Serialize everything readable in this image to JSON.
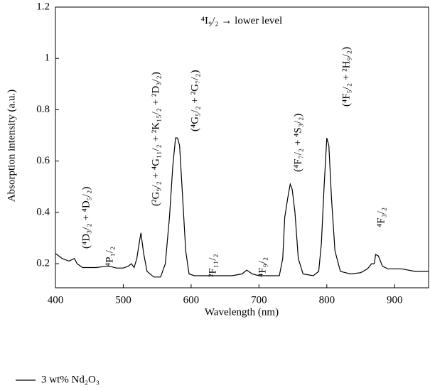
{
  "chart_data": {
    "type": "line",
    "x_label": "Wavelength (nm)",
    "y_label": "Absorption intensity (a.u.)",
    "x": [
      400,
      410,
      420,
      428,
      432,
      440,
      460,
      475,
      480,
      490,
      500,
      507,
      512,
      516,
      520,
      524,
      526,
      530,
      535,
      545,
      555,
      562,
      568,
      573,
      577,
      580,
      583,
      587,
      592,
      597,
      605,
      620,
      660,
      675,
      682,
      690,
      700,
      730,
      735,
      738,
      742,
      746,
      749,
      753,
      758,
      765,
      780,
      788,
      792,
      796,
      800,
      803,
      807,
      812,
      820,
      835,
      850,
      860,
      866,
      870,
      872,
      876,
      882,
      890,
      910,
      930,
      950
    ],
    "series": [
      {
        "name": "3 wt% Nd₂O₃",
        "color": "#000000",
        "values": [
          0.24,
          0.22,
          0.21,
          0.22,
          0.2,
          0.185,
          0.185,
          0.19,
          0.19,
          0.183,
          0.183,
          0.19,
          0.2,
          0.185,
          0.22,
          0.29,
          0.32,
          0.24,
          0.17,
          0.148,
          0.148,
          0.2,
          0.38,
          0.58,
          0.69,
          0.69,
          0.66,
          0.48,
          0.25,
          0.16,
          0.153,
          0.153,
          0.153,
          0.16,
          0.175,
          0.16,
          0.153,
          0.153,
          0.22,
          0.38,
          0.45,
          0.51,
          0.49,
          0.4,
          0.22,
          0.16,
          0.153,
          0.17,
          0.28,
          0.5,
          0.69,
          0.66,
          0.45,
          0.25,
          0.17,
          0.16,
          0.165,
          0.18,
          0.2,
          0.2,
          0.236,
          0.23,
          0.19,
          0.18,
          0.18,
          0.17,
          0.17
        ]
      }
    ],
    "xlim": [
      400,
      950
    ],
    "xticks": [
      400,
      500,
      600,
      700,
      800,
      900
    ],
    "ylim": [
      0.106,
      1.2
    ],
    "yticks": [
      0.2,
      0.4,
      0.6,
      0.8,
      {
        "value": 1,
        "label": "1"
      },
      1.2
    ],
    "annotations": [
      "(⁴D₃/₂ + ⁴D₅/₂)",
      "⁴P₁/₂",
      "(²G₉/₂ + ⁴G₁₁/₂ + ²K₁₅/₂ + ²D₃/₂)",
      "(⁴G₅/₂ + ²G₇/₂)",
      "²F₁₁/₂",
      "⁴F₉/₂",
      "(⁴F₇/₂ + ⁴S₃/₂)",
      "(⁴F₅/₂ + ²H₉/₂)",
      "⁴F₃/₂",
      "⁴I₉/₂ → lower level"
    ],
    "legend": "bottom-left"
  }
}
